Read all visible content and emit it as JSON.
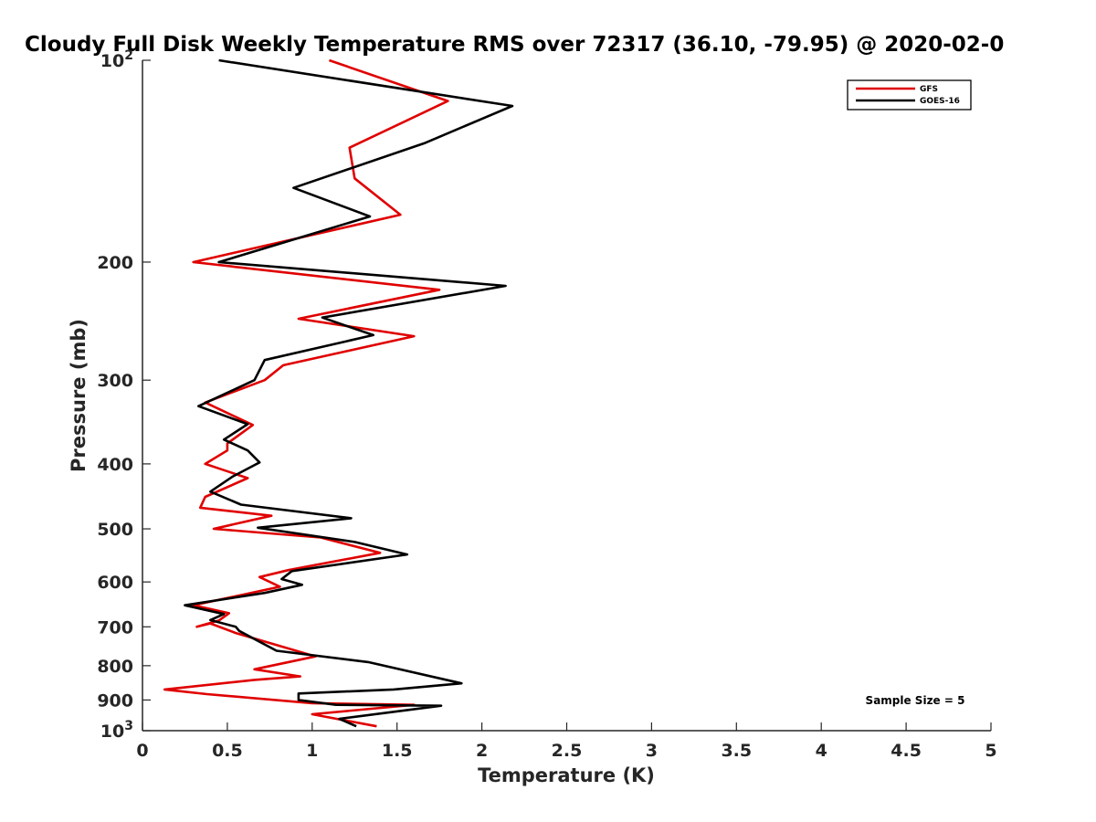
{
  "chart_data": {
    "type": "line",
    "title": "Cloudy Full Disk Weekly Temperature RMS over 72317 (36.10, -79.95) @ 2020-02-0",
    "xlabel": "Temperature (K)",
    "ylabel": "Pressure (mb)",
    "xlim": [
      0,
      5
    ],
    "ylim": [
      100,
      1000
    ],
    "y_scale": "log",
    "y_reversed": true,
    "grid": false,
    "legend_position": "top-right",
    "x_ticks": [
      "0",
      "0.5",
      "1",
      "1.5",
      "2",
      "2.5",
      "3",
      "3.5",
      "4",
      "4.5",
      "5"
    ],
    "x_tick_values": [
      0,
      0.5,
      1,
      1.5,
      2,
      2.5,
      3,
      3.5,
      4,
      4.5,
      5
    ],
    "y_ticks": [
      {
        "value": 100,
        "base": "10",
        "exp": "2"
      },
      {
        "value": 200,
        "label": "200"
      },
      {
        "value": 300,
        "label": "300"
      },
      {
        "value": 400,
        "label": "400"
      },
      {
        "value": 500,
        "label": "500"
      },
      {
        "value": 600,
        "label": "600"
      },
      {
        "value": 700,
        "label": "700"
      },
      {
        "value": 800,
        "label": "800"
      },
      {
        "value": 900,
        "label": "900"
      },
      {
        "value": 1000,
        "base": "10",
        "exp": "3"
      }
    ],
    "annotation": "Sample Size = 5",
    "series": [
      {
        "name": "GFS",
        "color": "#e00000",
        "points": [
          [
            1.1,
            100
          ],
          [
            1.8,
            115
          ],
          [
            1.22,
            135
          ],
          [
            1.25,
            150
          ],
          [
            1.52,
            170
          ],
          [
            0.3,
            200
          ],
          [
            1.75,
            220
          ],
          [
            0.92,
            243
          ],
          [
            1.6,
            258
          ],
          [
            0.83,
            285
          ],
          [
            0.72,
            300
          ],
          [
            0.37,
            324
          ],
          [
            0.65,
            350
          ],
          [
            0.5,
            373
          ],
          [
            0.5,
            382
          ],
          [
            0.37,
            400
          ],
          [
            0.62,
            420
          ],
          [
            0.37,
            448
          ],
          [
            0.34,
            465
          ],
          [
            0.76,
            478
          ],
          [
            0.42,
            500
          ],
          [
            1.05,
            515
          ],
          [
            1.4,
            543
          ],
          [
            0.86,
            576
          ],
          [
            0.69,
            590
          ],
          [
            0.81,
            610
          ],
          [
            0.3,
            650
          ],
          [
            0.51,
            668
          ],
          [
            0.45,
            685
          ],
          [
            0.32,
            700
          ],
          [
            0.4,
            692
          ],
          [
            0.55,
            715
          ],
          [
            1.02,
            775
          ],
          [
            0.66,
            810
          ],
          [
            0.93,
            830
          ],
          [
            0.66,
            840
          ],
          [
            0.13,
            868
          ],
          [
            0.38,
            882
          ],
          [
            1.0,
            910
          ],
          [
            1.6,
            915
          ],
          [
            1.0,
            945
          ],
          [
            1.38,
            985
          ]
        ]
      },
      {
        "name": "GOES-16",
        "color": "#000000",
        "points": [
          [
            0.45,
            100
          ],
          [
            2.18,
            117
          ],
          [
            1.66,
            133
          ],
          [
            0.89,
            155
          ],
          [
            1.34,
            171
          ],
          [
            0.45,
            200
          ],
          [
            2.14,
            217
          ],
          [
            1.06,
            242
          ],
          [
            1.36,
            257
          ],
          [
            0.72,
            280
          ],
          [
            0.66,
            300
          ],
          [
            0.33,
            328
          ],
          [
            0.62,
            349
          ],
          [
            0.48,
            368
          ],
          [
            0.62,
            382
          ],
          [
            0.69,
            398
          ],
          [
            0.53,
            418
          ],
          [
            0.4,
            440
          ],
          [
            0.58,
            460
          ],
          [
            1.23,
            482
          ],
          [
            0.68,
            498
          ],
          [
            1.25,
            523
          ],
          [
            1.56,
            546
          ],
          [
            0.88,
            578
          ],
          [
            0.82,
            594
          ],
          [
            0.94,
            606
          ],
          [
            0.72,
            623
          ],
          [
            0.25,
            650
          ],
          [
            0.48,
            670
          ],
          [
            0.4,
            684
          ],
          [
            0.55,
            700
          ],
          [
            0.57,
            710
          ],
          [
            0.79,
            760
          ],
          [
            1.33,
            790
          ],
          [
            1.88,
            850
          ],
          [
            1.48,
            868
          ],
          [
            0.92,
            880
          ],
          [
            0.92,
            900
          ],
          [
            1.14,
            915
          ],
          [
            1.76,
            918
          ],
          [
            1.16,
            960
          ],
          [
            1.26,
            985
          ]
        ]
      }
    ]
  }
}
